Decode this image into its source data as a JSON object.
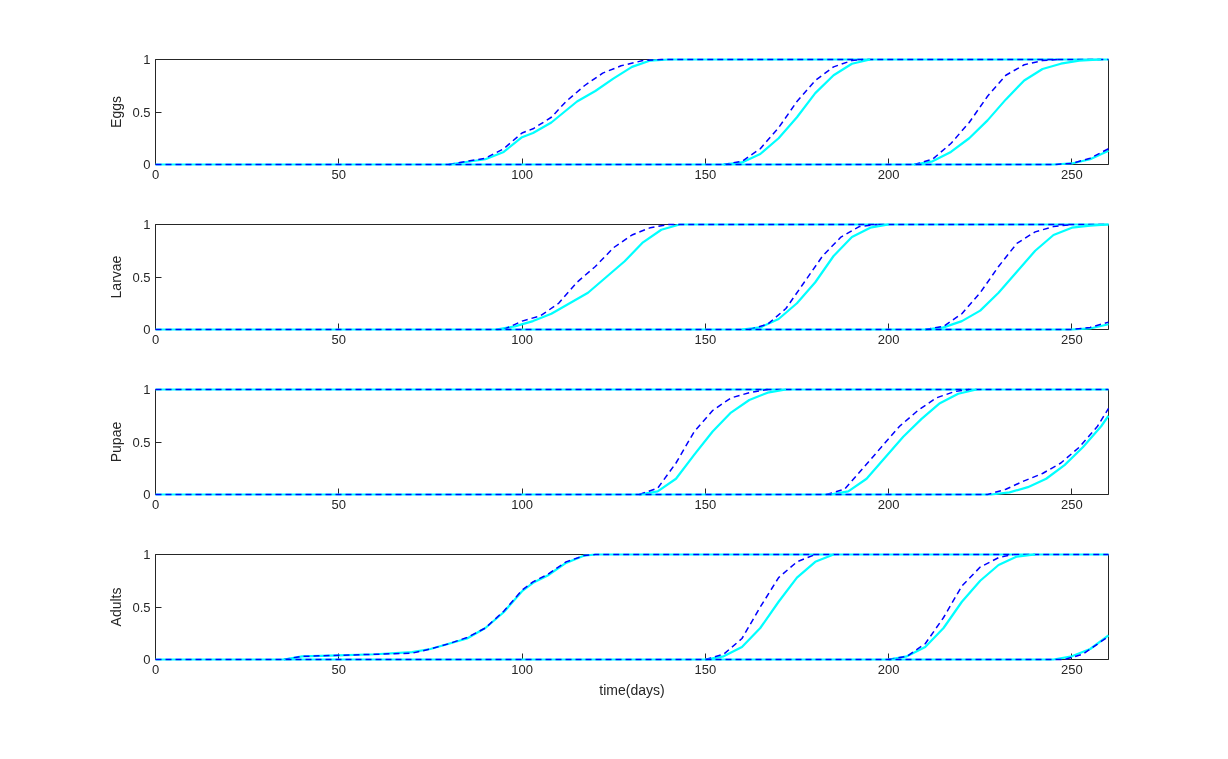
{
  "chart_data": [
    {
      "type": "line",
      "ylabel": "Eggs",
      "xlim": [
        0,
        260
      ],
      "ylim": [
        0,
        1
      ],
      "xticks": [
        0,
        50,
        100,
        150,
        200,
        250
      ],
      "yticks": [
        0,
        0.5,
        1
      ],
      "grid": false,
      "series": [
        {
          "color": "#00ffff",
          "line_style": "solid",
          "x": [
            80,
            90,
            95,
            100,
            103,
            108,
            115,
            120,
            125,
            130,
            135,
            140,
            260
          ],
          "values": [
            0,
            0.05,
            0.12,
            0.26,
            0.3,
            0.4,
            0.6,
            0.7,
            0.82,
            0.93,
            0.99,
            1,
            1
          ]
        },
        {
          "color": "#0000ff",
          "line_style": "dashed",
          "x": [
            80,
            90,
            95,
            100,
            103,
            108,
            112,
            117,
            122,
            127,
            133,
            138,
            260
          ],
          "values": [
            0,
            0.06,
            0.15,
            0.3,
            0.34,
            0.45,
            0.6,
            0.75,
            0.87,
            0.94,
            0.99,
            1,
            1
          ]
        },
        {
          "color": "#00ffff",
          "line_style": "solid",
          "x": [
            155,
            160,
            165,
            170,
            175,
            180,
            185,
            190,
            195
          ],
          "values": [
            0,
            0.02,
            0.1,
            0.25,
            0.45,
            0.68,
            0.85,
            0.96,
            1
          ]
        },
        {
          "color": "#0000ff",
          "line_style": "dashed",
          "x": [
            155,
            160,
            165,
            170,
            175,
            180,
            185,
            190,
            193
          ],
          "values": [
            0,
            0.03,
            0.15,
            0.35,
            0.6,
            0.8,
            0.93,
            0.99,
            1
          ]
        },
        {
          "color": "#00ffff",
          "line_style": "solid",
          "x": [
            207,
            212,
            217,
            222,
            227,
            232,
            237,
            242,
            247,
            252,
            258
          ],
          "values": [
            0,
            0.03,
            0.12,
            0.25,
            0.42,
            0.62,
            0.8,
            0.91,
            0.96,
            0.99,
            1
          ]
        },
        {
          "color": "#0000ff",
          "line_style": "dashed",
          "x": [
            207,
            212,
            217,
            222,
            227,
            232,
            237,
            242,
            246
          ],
          "values": [
            0,
            0.05,
            0.2,
            0.4,
            0.65,
            0.85,
            0.95,
            0.99,
            1
          ]
        },
        {
          "color": "#00ffff",
          "line_style": "solid",
          "x": [
            0,
            245,
            250,
            255,
            260
          ],
          "values": [
            0,
            0,
            0.01,
            0.05,
            0.13
          ]
        },
        {
          "color": "#0000ff",
          "line_style": "dashed",
          "x": [
            0,
            245,
            250,
            255,
            260
          ],
          "values": [
            0,
            0,
            0.01,
            0.06,
            0.15
          ]
        }
      ]
    },
    {
      "type": "line",
      "ylabel": "Larvae",
      "xlim": [
        0,
        260
      ],
      "ylim": [
        0,
        1
      ],
      "xticks": [
        0,
        50,
        100,
        150,
        200,
        250
      ],
      "yticks": [
        0,
        0.5,
        1
      ],
      "grid": false,
      "series": [
        {
          "color": "#00ffff",
          "line_style": "solid",
          "x": [
            93,
            98,
            103,
            108,
            113,
            118,
            123,
            128,
            133,
            138,
            143,
            260
          ],
          "values": [
            0,
            0.03,
            0.08,
            0.15,
            0.25,
            0.35,
            0.5,
            0.65,
            0.83,
            0.95,
            1,
            1
          ]
        },
        {
          "color": "#0000ff",
          "line_style": "dashed",
          "x": [
            95,
            100,
            105,
            110,
            115,
            120,
            125,
            130,
            135,
            140,
            260
          ],
          "values": [
            0,
            0.08,
            0.13,
            0.25,
            0.45,
            0.6,
            0.78,
            0.9,
            0.97,
            1,
            1
          ]
        },
        {
          "color": "#00ffff",
          "line_style": "solid",
          "x": [
            160,
            165,
            170,
            175,
            180,
            185,
            190,
            195,
            200
          ],
          "values": [
            0,
            0.02,
            0.1,
            0.25,
            0.45,
            0.7,
            0.88,
            0.97,
            1
          ]
        },
        {
          "color": "#0000ff",
          "line_style": "dashed",
          "x": [
            162,
            167,
            172,
            177,
            182,
            187,
            192,
            197
          ],
          "values": [
            0,
            0.05,
            0.2,
            0.45,
            0.7,
            0.88,
            0.98,
            1
          ]
        },
        {
          "color": "#00ffff",
          "line_style": "solid",
          "x": [
            210,
            215,
            220,
            225,
            230,
            235,
            240,
            245,
            250,
            255,
            260
          ],
          "values": [
            0,
            0.02,
            0.08,
            0.18,
            0.35,
            0.55,
            0.75,
            0.9,
            0.97,
            0.99,
            1
          ]
        },
        {
          "color": "#0000ff",
          "line_style": "dashed",
          "x": [
            210,
            215,
            220,
            225,
            230,
            235,
            240,
            245,
            250
          ],
          "values": [
            0,
            0.03,
            0.15,
            0.35,
            0.6,
            0.82,
            0.93,
            0.98,
            1
          ]
        },
        {
          "color": "#00ffff",
          "line_style": "solid",
          "x": [
            0,
            250,
            255,
            260
          ],
          "values": [
            0,
            0,
            0.01,
            0.05
          ]
        },
        {
          "color": "#0000ff",
          "line_style": "dashed",
          "x": [
            0,
            250,
            255,
            260
          ],
          "values": [
            0,
            0,
            0.02,
            0.07
          ]
        }
      ]
    },
    {
      "type": "line",
      "ylabel": "Pupae",
      "xlim": [
        0,
        260
      ],
      "ylim": [
        0,
        1
      ],
      "xticks": [
        0,
        50,
        100,
        150,
        200,
        250
      ],
      "yticks": [
        0,
        0.5,
        1
      ],
      "grid": false,
      "series": [
        {
          "color": "#00ffff",
          "line_style": "solid",
          "x": [
            0,
            260
          ],
          "values": [
            1,
            1
          ]
        },
        {
          "color": "#0000ff",
          "line_style": "dashed",
          "x": [
            0,
            260
          ],
          "values": [
            1,
            1
          ]
        },
        {
          "color": "#00ffff",
          "line_style": "solid",
          "x": [
            132,
            137,
            142,
            147,
            152,
            157,
            162,
            167,
            172
          ],
          "values": [
            0,
            0.03,
            0.15,
            0.38,
            0.6,
            0.78,
            0.9,
            0.97,
            1
          ]
        },
        {
          "color": "#0000ff",
          "line_style": "dashed",
          "x": [
            132,
            137,
            142,
            147,
            152,
            157,
            162,
            167
          ],
          "values": [
            0,
            0.06,
            0.3,
            0.6,
            0.8,
            0.92,
            0.97,
            1
          ]
        },
        {
          "color": "#00ffff",
          "line_style": "solid",
          "x": [
            184,
            189,
            194,
            199,
            204,
            209,
            214,
            219,
            224
          ],
          "values": [
            0,
            0.03,
            0.15,
            0.35,
            0.55,
            0.72,
            0.87,
            0.96,
            1
          ]
        },
        {
          "color": "#0000ff",
          "line_style": "dashed",
          "x": [
            183,
            188,
            193,
            198,
            203,
            208,
            213,
            218,
            222
          ],
          "values": [
            0,
            0.05,
            0.25,
            0.45,
            0.65,
            0.8,
            0.92,
            0.98,
            1
          ]
        },
        {
          "color": "#00ffff",
          "line_style": "solid",
          "x": [
            0,
            228,
            233,
            238,
            243,
            248,
            253,
            258,
            260
          ],
          "values": [
            0,
            0,
            0.02,
            0.07,
            0.15,
            0.28,
            0.45,
            0.65,
            0.75
          ]
        },
        {
          "color": "#0000ff",
          "line_style": "dashed",
          "x": [
            0,
            227,
            232,
            237,
            242,
            247,
            252,
            257,
            260
          ],
          "values": [
            0,
            0,
            0.05,
            0.13,
            0.2,
            0.3,
            0.45,
            0.65,
            0.82
          ]
        }
      ]
    },
    {
      "type": "line",
      "ylabel": "Adults",
      "xlabel": "time(days)",
      "xlim": [
        0,
        260
      ],
      "ylim": [
        0,
        1
      ],
      "xticks": [
        0,
        50,
        100,
        150,
        200,
        250
      ],
      "yticks": [
        0,
        0.5,
        1
      ],
      "grid": false,
      "series": [
        {
          "color": "#00ffff",
          "line_style": "solid",
          "x": [
            35,
            40,
            50,
            60,
            70,
            75,
            80,
            85,
            90,
            95,
            100,
            103,
            107,
            112,
            117,
            120,
            260
          ],
          "values": [
            0,
            0.03,
            0.04,
            0.05,
            0.07,
            0.1,
            0.15,
            0.2,
            0.3,
            0.45,
            0.65,
            0.73,
            0.8,
            0.92,
            0.99,
            1,
            1
          ]
        },
        {
          "color": "#0000ff",
          "line_style": "dashed",
          "x": [
            35,
            40,
            50,
            60,
            70,
            75,
            80,
            85,
            90,
            95,
            100,
            103,
            107,
            112,
            117,
            120,
            260
          ],
          "values": [
            0,
            0.03,
            0.04,
            0.05,
            0.06,
            0.1,
            0.15,
            0.21,
            0.3,
            0.46,
            0.66,
            0.74,
            0.81,
            0.93,
            0.99,
            1,
            1
          ]
        },
        {
          "color": "#00ffff",
          "line_style": "solid",
          "x": [
            150,
            155,
            160,
            165,
            170,
            175,
            180,
            185
          ],
          "values": [
            0,
            0.03,
            0.12,
            0.3,
            0.55,
            0.78,
            0.93,
            1
          ]
        },
        {
          "color": "#0000ff",
          "line_style": "dashed",
          "x": [
            150,
            155,
            160,
            165,
            170,
            175,
            180
          ],
          "values": [
            0,
            0.05,
            0.2,
            0.5,
            0.78,
            0.93,
            1
          ]
        },
        {
          "color": "#00ffff",
          "line_style": "solid",
          "x": [
            200,
            205,
            210,
            215,
            220,
            225,
            230,
            235,
            240
          ],
          "values": [
            0,
            0.03,
            0.12,
            0.3,
            0.55,
            0.75,
            0.9,
            0.98,
            1
          ]
        },
        {
          "color": "#0000ff",
          "line_style": "dashed",
          "x": [
            200,
            205,
            210,
            215,
            220,
            225,
            230,
            234
          ],
          "values": [
            0,
            0.03,
            0.15,
            0.4,
            0.7,
            0.88,
            0.97,
            1
          ]
        },
        {
          "color": "#00ffff",
          "line_style": "solid",
          "x": [
            0,
            245,
            250,
            255,
            260
          ],
          "values": [
            0,
            0,
            0.03,
            0.1,
            0.23
          ]
        },
        {
          "color": "#0000ff",
          "line_style": "dashed",
          "x": [
            0,
            248,
            253,
            260
          ],
          "values": [
            0,
            0,
            0.05,
            0.22
          ]
        }
      ]
    }
  ]
}
